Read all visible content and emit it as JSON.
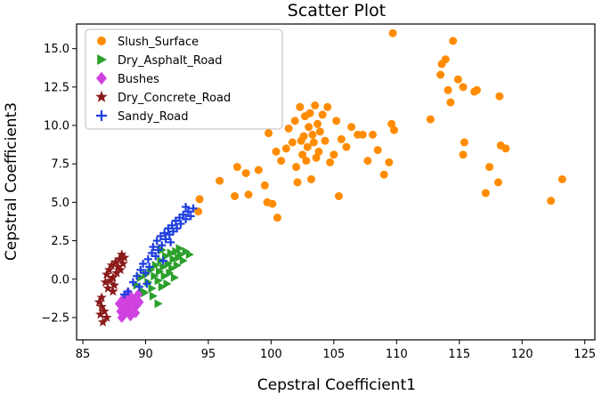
{
  "chart_data": {
    "type": "scatter",
    "title": "Scatter Plot",
    "xlabel": "Cepstral Coefficient1",
    "ylabel": "Cepstral Coefficient3",
    "xlim": [
      84.5,
      125.8
    ],
    "ylim": [
      -3.95,
      16.6
    ],
    "x_ticks": [
      85,
      90,
      95,
      100,
      105,
      110,
      115,
      120,
      125
    ],
    "y_ticks": [
      -2.5,
      0.0,
      2.5,
      5.0,
      7.5,
      10.0,
      12.5,
      15.0
    ],
    "x_tick_labels": [
      "85",
      "90",
      "95",
      "100",
      "105",
      "110",
      "115",
      "120",
      "125"
    ],
    "y_tick_labels": [
      "−2.5",
      "0.0",
      "2.5",
      "5.0",
      "7.5",
      "10.0",
      "12.5",
      "15.0"
    ],
    "grid": false,
    "legend_position": "top-left",
    "series": [
      {
        "name": "Slush_Surface",
        "marker": "circle",
        "color": "#ff8c00",
        "points": [
          [
            94.3,
            5.2
          ],
          [
            94.2,
            4.4
          ],
          [
            95.9,
            6.4
          ],
          [
            97.3,
            7.3
          ],
          [
            97.1,
            5.4
          ],
          [
            98.2,
            5.5
          ],
          [
            98.0,
            6.9
          ],
          [
            99.0,
            7.1
          ],
          [
            99.5,
            6.1
          ],
          [
            99.7,
            5.0
          ],
          [
            100.1,
            4.9
          ],
          [
            100.5,
            4.0
          ],
          [
            99.8,
            9.5
          ],
          [
            100.4,
            8.3
          ],
          [
            100.8,
            7.7
          ],
          [
            101.2,
            8.5
          ],
          [
            101.4,
            9.8
          ],
          [
            101.7,
            8.9
          ],
          [
            101.9,
            10.3
          ],
          [
            102.0,
            7.3
          ],
          [
            102.1,
            6.3
          ],
          [
            102.3,
            11.2
          ],
          [
            102.4,
            9.0
          ],
          [
            102.5,
            8.1
          ],
          [
            102.6,
            9.3
          ],
          [
            102.7,
            10.6
          ],
          [
            102.8,
            7.7
          ],
          [
            102.9,
            8.6
          ],
          [
            103.0,
            9.9
          ],
          [
            103.1,
            10.8
          ],
          [
            103.2,
            6.5
          ],
          [
            103.3,
            9.4
          ],
          [
            103.4,
            8.9
          ],
          [
            103.5,
            11.3
          ],
          [
            103.6,
            7.9
          ],
          [
            103.7,
            10.1
          ],
          [
            103.8,
            8.3
          ],
          [
            103.9,
            9.6
          ],
          [
            104.1,
            10.7
          ],
          [
            104.3,
            9.0
          ],
          [
            104.5,
            11.2
          ],
          [
            104.7,
            7.6
          ],
          [
            105.0,
            8.1
          ],
          [
            105.2,
            10.3
          ],
          [
            105.4,
            5.4
          ],
          [
            105.6,
            9.1
          ],
          [
            106.0,
            8.6
          ],
          [
            106.4,
            9.9
          ],
          [
            106.9,
            9.4
          ],
          [
            107.3,
            9.4
          ],
          [
            107.7,
            7.7
          ],
          [
            108.1,
            9.4
          ],
          [
            108.5,
            8.4
          ],
          [
            109.0,
            6.8
          ],
          [
            109.4,
            7.6
          ],
          [
            109.6,
            10.1
          ],
          [
            109.8,
            9.7
          ],
          [
            109.7,
            16.0
          ],
          [
            112.7,
            10.4
          ],
          [
            113.5,
            13.3
          ],
          [
            113.6,
            14.0
          ],
          [
            113.9,
            14.3
          ],
          [
            114.1,
            12.3
          ],
          [
            114.3,
            11.5
          ],
          [
            114.5,
            15.5
          ],
          [
            114.9,
            13.0
          ],
          [
            115.3,
            12.5
          ],
          [
            115.4,
            8.9
          ],
          [
            115.3,
            8.1
          ],
          [
            116.2,
            12.2
          ],
          [
            116.4,
            12.3
          ],
          [
            117.1,
            5.6
          ],
          [
            117.4,
            7.3
          ],
          [
            118.2,
            11.9
          ],
          [
            118.1,
            6.3
          ],
          [
            118.3,
            8.7
          ],
          [
            118.7,
            8.5
          ],
          [
            122.3,
            5.1
          ],
          [
            123.2,
            6.5
          ]
        ]
      },
      {
        "name": "Dry_Asphalt_Road",
        "marker": "triangle-right",
        "color": "#2ca02c",
        "points": [
          [
            89.3,
            -0.4
          ],
          [
            89.6,
            0.1
          ],
          [
            89.8,
            -0.8
          ],
          [
            90.0,
            0.3
          ],
          [
            90.2,
            -0.2
          ],
          [
            90.4,
            0.6
          ],
          [
            90.5,
            -0.6
          ],
          [
            90.7,
            0.2
          ],
          [
            90.8,
            0.9
          ],
          [
            91.0,
            -0.1
          ],
          [
            91.1,
            0.5
          ],
          [
            91.2,
            1.2
          ],
          [
            91.3,
            -0.5
          ],
          [
            91.4,
            0.8
          ],
          [
            91.5,
            0.2
          ],
          [
            91.6,
            1.5
          ],
          [
            91.7,
            -0.3
          ],
          [
            91.8,
            1.0
          ],
          [
            91.9,
            0.4
          ],
          [
            92.0,
            1.7
          ],
          [
            92.1,
            0.7
          ],
          [
            92.2,
            1.3
          ],
          [
            92.3,
            0.1
          ],
          [
            92.4,
            1.8
          ],
          [
            92.5,
            0.9
          ],
          [
            92.6,
            1.4
          ],
          [
            92.8,
            1.6
          ],
          [
            93.0,
            1.2
          ],
          [
            93.2,
            1.8
          ],
          [
            93.5,
            1.6
          ],
          [
            91.0,
            -1.6
          ],
          [
            90.6,
            -1.1
          ],
          [
            89.9,
            -0.9
          ],
          [
            92.7,
            2.0
          ],
          [
            91.3,
            1.9
          ]
        ]
      },
      {
        "name": "Bushes",
        "marker": "diamond",
        "color": "#d042e0",
        "points": [
          [
            87.9,
            -1.6
          ],
          [
            88.0,
            -2.1
          ],
          [
            88.2,
            -1.3
          ],
          [
            88.3,
            -2.3
          ],
          [
            88.4,
            -1.8
          ],
          [
            88.5,
            -1.0
          ],
          [
            88.6,
            -2.0
          ],
          [
            88.7,
            -1.5
          ],
          [
            88.8,
            -2.4
          ],
          [
            88.9,
            -1.2
          ],
          [
            89.0,
            -1.9
          ],
          [
            89.1,
            -1.4
          ],
          [
            89.2,
            -2.2
          ],
          [
            89.3,
            -1.7
          ],
          [
            89.4,
            -1.0
          ],
          [
            88.1,
            -2.5
          ],
          [
            89.5,
            -1.5
          ],
          [
            88.6,
            -0.9
          ]
        ]
      },
      {
        "name": "Dry_Concrete_Road",
        "marker": "star",
        "color": "#8b1a1a",
        "points": [
          [
            86.3,
            -1.5
          ],
          [
            86.4,
            -2.3
          ],
          [
            86.5,
            -1.8
          ],
          [
            86.6,
            -2.8
          ],
          [
            86.7,
            -2.1
          ],
          [
            86.5,
            -1.2
          ],
          [
            86.8,
            -0.2
          ],
          [
            86.9,
            0.3
          ],
          [
            87.0,
            -0.6
          ],
          [
            87.1,
            0.6
          ],
          [
            87.2,
            -0.1
          ],
          [
            87.3,
            0.9
          ],
          [
            87.4,
            0.1
          ],
          [
            87.5,
            -0.4
          ],
          [
            87.6,
            1.1
          ],
          [
            87.7,
            0.4
          ],
          [
            87.8,
            0.8
          ],
          [
            87.9,
            1.3
          ],
          [
            88.0,
            0.6
          ],
          [
            88.1,
            1.6
          ],
          [
            88.2,
            1.0
          ],
          [
            88.3,
            1.4
          ],
          [
            86.9,
            -2.5
          ],
          [
            87.4,
            -0.8
          ]
        ]
      },
      {
        "name": "Sandy_Road",
        "marker": "plus",
        "color": "#1f3fe0",
        "points": [
          [
            88.6,
            -0.8
          ],
          [
            89.0,
            -0.2
          ],
          [
            89.3,
            0.2
          ],
          [
            89.5,
            -0.5
          ],
          [
            89.6,
            0.6
          ],
          [
            89.8,
            1.0
          ],
          [
            90.0,
            0.4
          ],
          [
            90.2,
            1.3
          ],
          [
            90.3,
            0.8
          ],
          [
            90.5,
            1.7
          ],
          [
            90.6,
            2.1
          ],
          [
            90.8,
            1.5
          ],
          [
            90.9,
            2.5
          ],
          [
            91.0,
            1.9
          ],
          [
            91.2,
            2.8
          ],
          [
            91.3,
            2.2
          ],
          [
            91.5,
            3.0
          ],
          [
            91.6,
            2.6
          ],
          [
            91.8,
            3.3
          ],
          [
            91.9,
            2.9
          ],
          [
            92.1,
            3.5
          ],
          [
            92.2,
            3.1
          ],
          [
            92.4,
            3.8
          ],
          [
            92.5,
            3.3
          ],
          [
            92.7,
            4.0
          ],
          [
            92.8,
            3.6
          ],
          [
            93.0,
            4.2
          ],
          [
            93.2,
            3.9
          ],
          [
            93.4,
            4.4
          ],
          [
            93.6,
            4.1
          ],
          [
            93.8,
            4.6
          ],
          [
            93.2,
            4.7
          ],
          [
            90.1,
            -0.3
          ],
          [
            88.3,
            -1.0
          ],
          [
            91.4,
            1.2
          ],
          [
            92.0,
            2.4
          ]
        ]
      }
    ]
  }
}
